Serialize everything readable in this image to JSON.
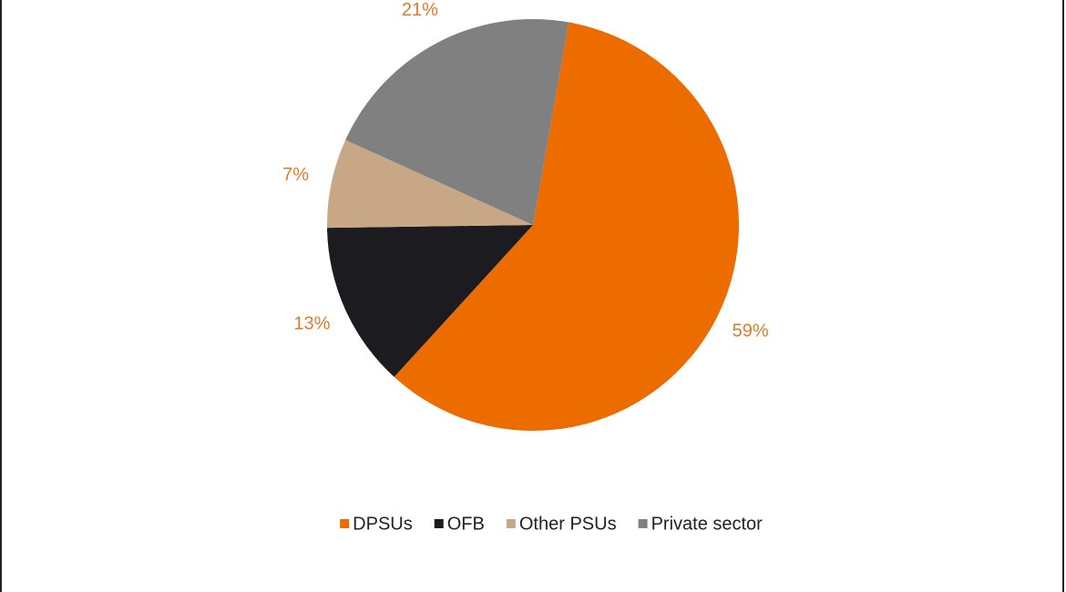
{
  "chart_data": {
    "type": "pie",
    "categories": [
      "DPSUs",
      "OFB",
      "Other PSUs",
      "Private sector"
    ],
    "values": [
      59,
      13,
      7,
      21
    ],
    "value_labels": [
      "59%",
      "13%",
      "7%",
      "21%"
    ],
    "colors": [
      "#ec6c00",
      "#1c1b20",
      "#c8a786",
      "#808080"
    ],
    "label_color": "#e07a2a",
    "legend": "bottom"
  }
}
